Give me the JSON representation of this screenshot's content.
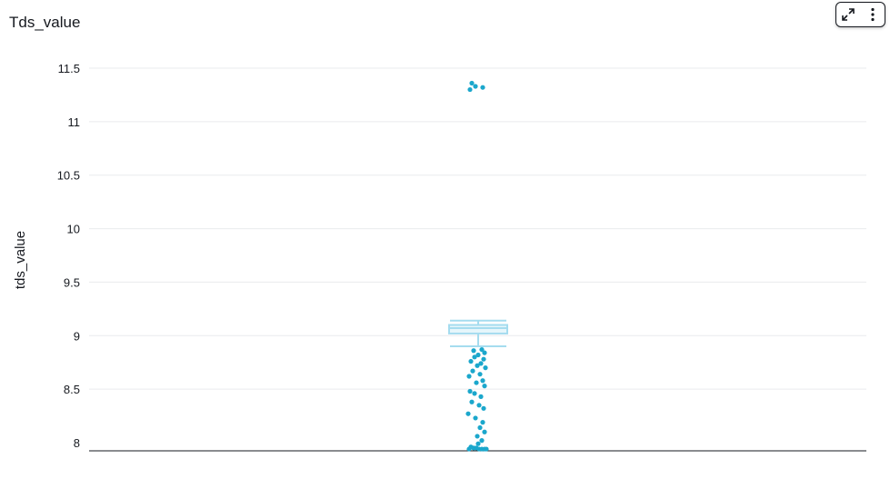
{
  "title": "Tds_value",
  "toolbar": {
    "expand_icon": "expand-icon",
    "menu_icon": "vertical-dots-icon"
  },
  "colors": {
    "points": "#1ba7cc",
    "box": "#a5dcef",
    "gridline": "#e9ebed",
    "axis": "#16191f"
  },
  "chart_data": {
    "type": "box",
    "ylabel": "tds_value",
    "xlabel": "",
    "ylim": [
      7.92,
      11.6
    ],
    "yticks": [
      8,
      8.5,
      9,
      9.5,
      10,
      10.5,
      11,
      11.5
    ],
    "ytick_labels": [
      "8",
      "8.5",
      "9",
      "9.5",
      "10",
      "10.5",
      "11",
      "11.5"
    ],
    "grid": true,
    "box": {
      "whisker_low": 8.9,
      "q1": 9.02,
      "median": 9.07,
      "q3": 9.1,
      "whisker_high": 9.14
    },
    "outliers": [
      11.36,
      11.33,
      11.32,
      11.3,
      8.87,
      8.86,
      8.84,
      8.82,
      8.8,
      8.78,
      8.76,
      8.74,
      8.72,
      8.7,
      8.67,
      8.64,
      8.62,
      8.58,
      8.56,
      8.53,
      8.48,
      8.46,
      8.43,
      8.38,
      8.35,
      8.32,
      8.27,
      8.23,
      8.19,
      8.14,
      8.1,
      8.06,
      8.02,
      7.99,
      7.96,
      7.95,
      7.95,
      7.94,
      7.94,
      7.94,
      7.94,
      7.94
    ]
  }
}
